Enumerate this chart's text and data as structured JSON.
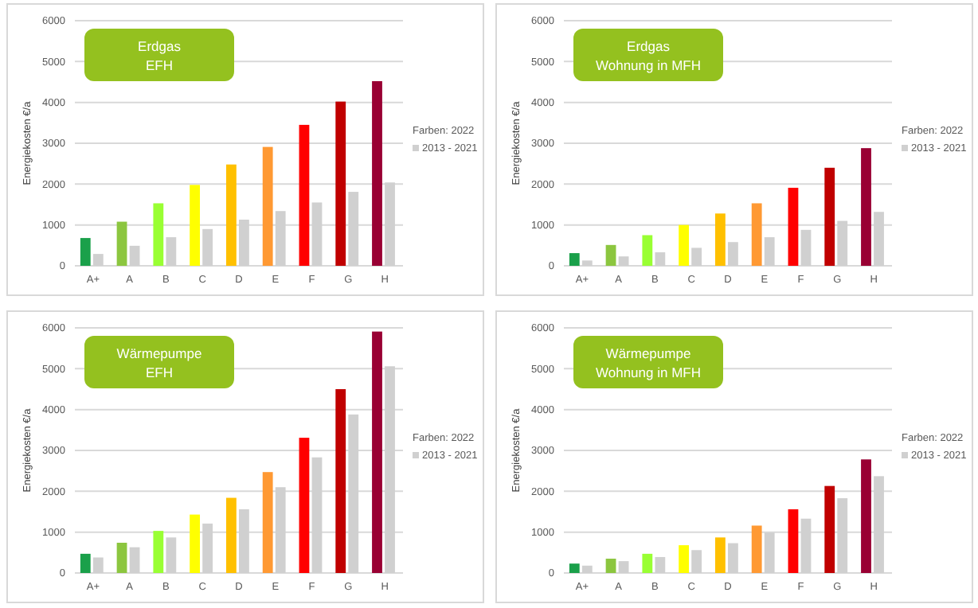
{
  "chart_data": [
    {
      "type": "bar",
      "title": "Erdgas",
      "subtitle": "EFH",
      "ylabel": "Energiekosten €/a",
      "categories": [
        "A+",
        "A",
        "B",
        "C",
        "D",
        "E",
        "F",
        "G",
        "H"
      ],
      "ylim": [
        0,
        6000
      ],
      "yticks": [
        0,
        1000,
        2000,
        3000,
        4000,
        5000,
        6000
      ],
      "grid": "y",
      "legend": "right",
      "series": [
        {
          "name": "Farben: 2022",
          "colors": [
            "#1aa04a",
            "#8cc63f",
            "#99ff33",
            "#ffff00",
            "#ffc000",
            "#ff9933",
            "#ff0000",
            "#c00000",
            "#990033"
          ],
          "values": [
            680,
            1080,
            1530,
            1980,
            2480,
            2910,
            3450,
            4020,
            4520
          ]
        },
        {
          "name": "2013 - 2021",
          "color": "#d0d0d0",
          "values": [
            290,
            490,
            700,
            900,
            1130,
            1340,
            1550,
            1810,
            2040
          ]
        }
      ]
    },
    {
      "type": "bar",
      "title": "Erdgas",
      "subtitle": "Wohnung in MFH",
      "ylabel": "Energiekosten €/a",
      "categories": [
        "A+",
        "A",
        "B",
        "C",
        "D",
        "E",
        "F",
        "G",
        "H"
      ],
      "ylim": [
        0,
        6000
      ],
      "yticks": [
        0,
        1000,
        2000,
        3000,
        4000,
        5000,
        6000
      ],
      "grid": "y",
      "legend": "right",
      "series": [
        {
          "name": "Farben: 2022",
          "colors": [
            "#1aa04a",
            "#8cc63f",
            "#99ff33",
            "#ffff00",
            "#ffc000",
            "#ff9933",
            "#ff0000",
            "#c00000",
            "#990033"
          ],
          "values": [
            310,
            510,
            750,
            1000,
            1280,
            1530,
            1910,
            2400,
            2880
          ]
        },
        {
          "name": "2013 - 2021",
          "color": "#d0d0d0",
          "values": [
            130,
            230,
            330,
            440,
            580,
            700,
            880,
            1100,
            1320
          ]
        }
      ]
    },
    {
      "type": "bar",
      "title": "Wärmepumpe",
      "subtitle": "EFH",
      "ylabel": "Energiekosten €/a",
      "categories": [
        "A+",
        "A",
        "B",
        "C",
        "D",
        "E",
        "F",
        "G",
        "H"
      ],
      "ylim": [
        0,
        6000
      ],
      "yticks": [
        0,
        1000,
        2000,
        3000,
        4000,
        5000,
        6000
      ],
      "grid": "y",
      "legend": "right",
      "series": [
        {
          "name": "Farben: 2022",
          "colors": [
            "#1aa04a",
            "#8cc63f",
            "#99ff33",
            "#ffff00",
            "#ffc000",
            "#ff9933",
            "#ff0000",
            "#c00000",
            "#990033"
          ],
          "values": [
            470,
            740,
            1030,
            1430,
            1840,
            2470,
            3310,
            4500,
            5910
          ]
        },
        {
          "name": "2013 - 2021",
          "color": "#d0d0d0",
          "values": [
            380,
            630,
            870,
            1210,
            1560,
            2100,
            2830,
            3880,
            5060
          ]
        }
      ]
    },
    {
      "type": "bar",
      "title": "Wärmepumpe",
      "subtitle": "Wohnung in MFH",
      "ylabel": "Energiekosten €/a",
      "categories": [
        "A+",
        "A",
        "B",
        "C",
        "D",
        "E",
        "F",
        "G",
        "H"
      ],
      "ylim": [
        0,
        6000
      ],
      "yticks": [
        0,
        1000,
        2000,
        3000,
        4000,
        5000,
        6000
      ],
      "grid": "y",
      "legend": "right",
      "series": [
        {
          "name": "Farben: 2022",
          "colors": [
            "#1aa04a",
            "#8cc63f",
            "#99ff33",
            "#ffff00",
            "#ffc000",
            "#ff9933",
            "#ff0000",
            "#c00000",
            "#990033"
          ],
          "values": [
            230,
            350,
            470,
            680,
            870,
            1160,
            1560,
            2130,
            2780
          ]
        },
        {
          "name": "2013 - 2021",
          "color": "#d0d0d0",
          "values": [
            180,
            290,
            390,
            560,
            730,
            990,
            1330,
            1830,
            2370
          ]
        }
      ]
    }
  ]
}
